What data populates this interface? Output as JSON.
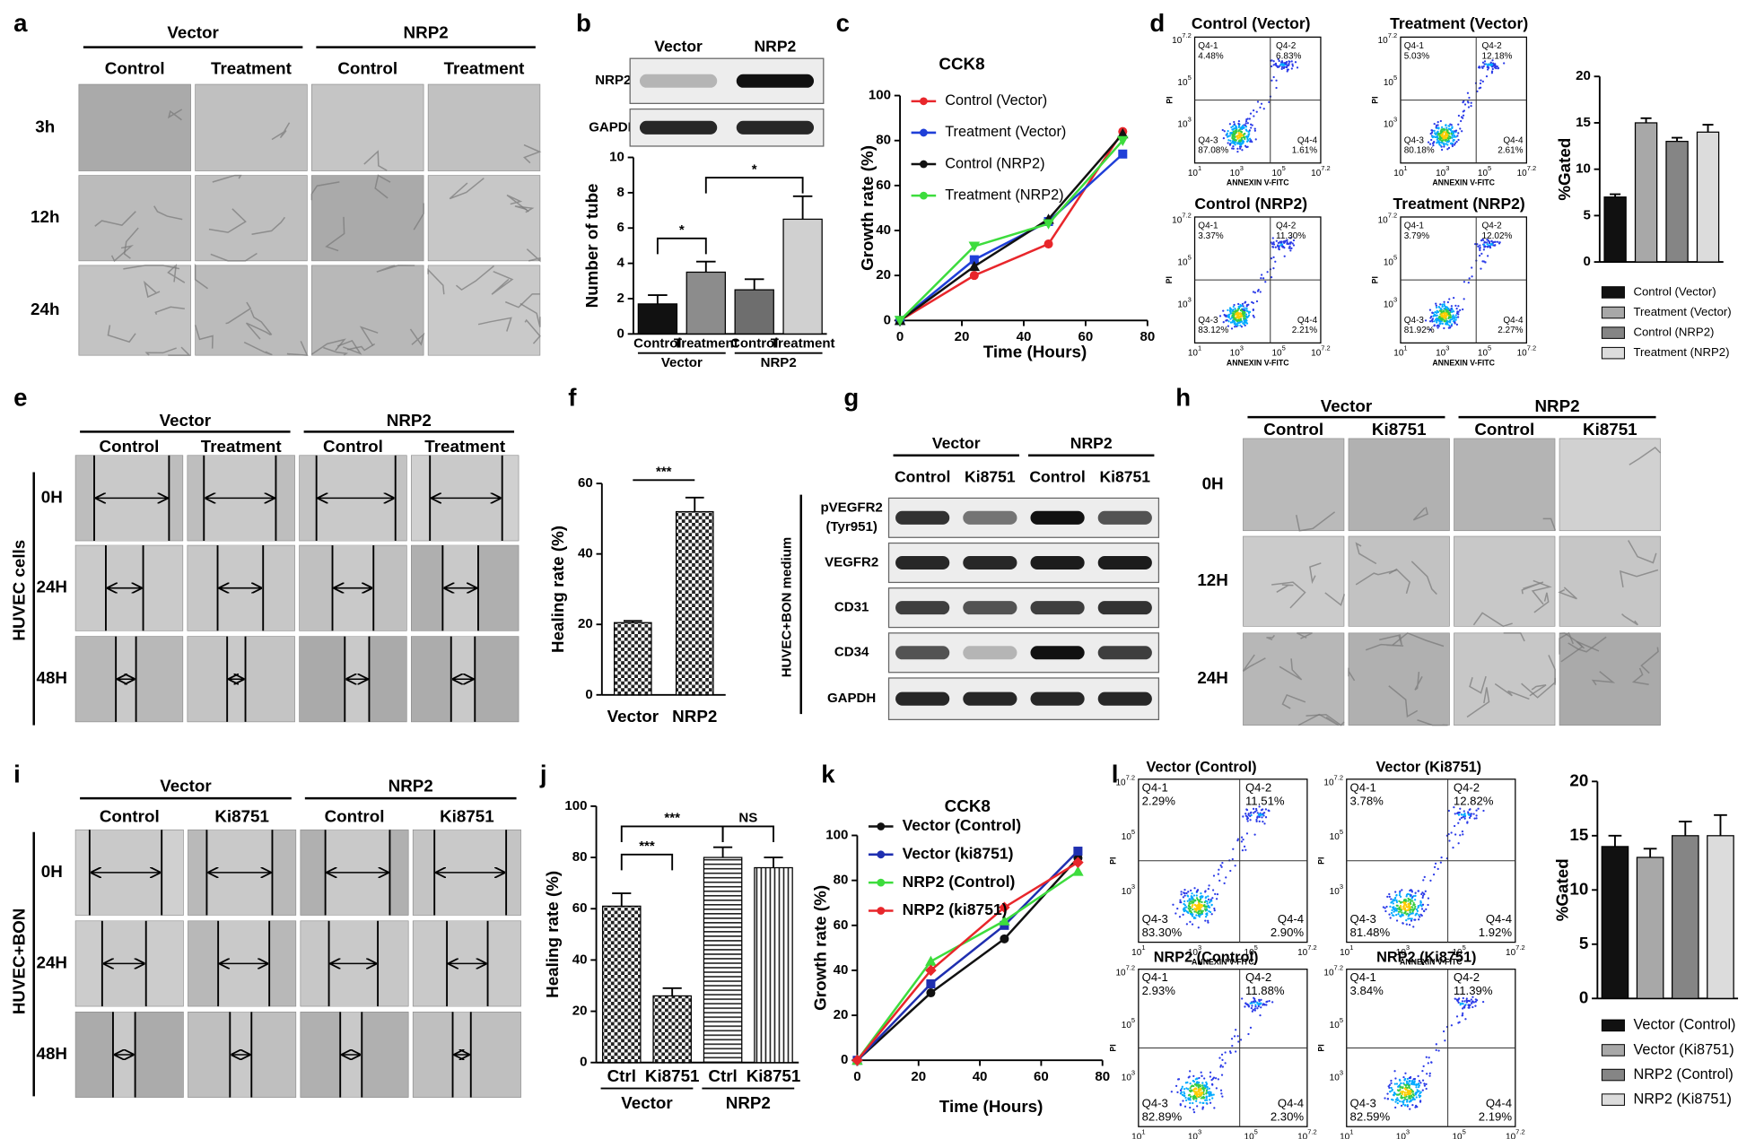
{
  "image_panels": [
    {
      "panel": "a",
      "group_labels": [
        "Vector",
        "NRP2"
      ],
      "columns": [
        "Control",
        "Treatment",
        "Control",
        "Treatment"
      ],
      "rows": [
        "3h",
        "12h",
        "24h"
      ]
    },
    {
      "panel": "e",
      "group_labels": [
        "Vector",
        "NRP2"
      ],
      "columns": [
        "Control",
        "Treatment",
        "Control",
        "Treatment"
      ],
      "rows": [
        "0H",
        "24H",
        "48H"
      ],
      "side_label": "HUVEC cells"
    },
    {
      "panel": "h",
      "group_labels": [
        "Vector",
        "NRP2"
      ],
      "columns": [
        "Control",
        "Ki8751",
        "Control",
        "Ki8751"
      ],
      "rows": [
        "0H",
        "12H",
        "24H"
      ]
    },
    {
      "panel": "i",
      "group_labels": [
        "Vector",
        "NRP2"
      ],
      "columns": [
        "Control",
        "Ki8751",
        "Control",
        "Ki8751"
      ],
      "rows": [
        "0H",
        "24H",
        "48H"
      ],
      "side_label": "HUVEC+BON"
    }
  ],
  "blots": [
    {
      "columns": [
        "Vector",
        "NRP2"
      ],
      "rows": [
        [
          "NRP2"
        ],
        [
          "GAPDH"
        ]
      ]
    },
    {
      "panel": "g",
      "group_labels": [
        "Vector",
        "NRP2"
      ],
      "columns": [
        "Control",
        "Ki8751",
        "Control",
        "Ki8751"
      ],
      "rows": [
        [
          "pVEGFR2",
          "(Tyr951)"
        ],
        [
          "VEGFR2"
        ],
        [
          "CD31"
        ],
        [
          "CD34"
        ],
        [
          "GAPDH"
        ]
      ],
      "side_label": "HUVEC+BON medium"
    }
  ],
  "flow_panels": [
    {
      "panel": "d",
      "tick_base": "10",
      "tick_exponents": [
        "1",
        "3",
        "5",
        "7.2"
      ],
      "x_label": "ANNEXIN V-FITC",
      "y_label": "PI",
      "plots": [
        {
          "title": "Control (Vector)",
          "quadrants": [
            {
              "name": "Q4-1",
              "value": "4.48%"
            },
            {
              "name": "Q4-2",
              "value": "6.83%"
            },
            {
              "name": "Q4-3",
              "value": "87.08%"
            },
            {
              "name": "Q4-4",
              "value": "1.61%"
            }
          ]
        },
        {
          "title": "Treatment (Vector)",
          "quadrants": [
            {
              "name": "Q4-1",
              "value": "5.03%"
            },
            {
              "name": "Q4-2",
              "value": "12.18%"
            },
            {
              "name": "Q4-3",
              "value": "80.18%"
            },
            {
              "name": "Q4-4",
              "value": "2.61%"
            }
          ]
        },
        {
          "title": "Control (NRP2)",
          "quadrants": [
            {
              "name": "Q4-1",
              "value": "3.37%"
            },
            {
              "name": "Q4-2",
              "value": "11.30%"
            },
            {
              "name": "Q4-3",
              "value": "83.12%"
            },
            {
              "name": "Q4-4",
              "value": "2.21%"
            }
          ]
        },
        {
          "title": "Treatment (NRP2)",
          "quadrants": [
            {
              "name": "Q4-1",
              "value": "3.79%"
            },
            {
              "name": "Q4-2",
              "value": "12.02%"
            },
            {
              "name": "Q4-3",
              "value": "81.92%"
            },
            {
              "name": "Q4-4",
              "value": "2.27%"
            }
          ]
        }
      ]
    },
    {
      "panel": "l",
      "tick_base": "10",
      "tick_exponents": [
        "1",
        "3",
        "5",
        "7.2"
      ],
      "x_label": "ANNEXIN V-FITC",
      "y_label": "PI",
      "plots": [
        {
          "title": "Vector (Control)",
          "quadrants": [
            {
              "name": "Q4-1",
              "value": "2.29%"
            },
            {
              "name": "Q4-2",
              "value": "11.51%"
            },
            {
              "name": "Q4-3",
              "value": "83.30%"
            },
            {
              "name": "Q4-4",
              "value": "2.90%"
            }
          ]
        },
        {
          "title": "Vector (Ki8751)",
          "quadrants": [
            {
              "name": "Q4-1",
              "value": "3.78%"
            },
            {
              "name": "Q4-2",
              "value": "12.82%"
            },
            {
              "name": "Q4-3",
              "value": "81.48%"
            },
            {
              "name": "Q4-4",
              "value": "1.92%"
            }
          ]
        },
        {
          "title": "NRP2 (Control)",
          "quadrants": [
            {
              "name": "Q4-1",
              "value": "2.93%"
            },
            {
              "name": "Q4-2",
              "value": "11.88%"
            },
            {
              "name": "Q4-3",
              "value": "82.89%"
            },
            {
              "name": "Q4-4",
              "value": "2.30%"
            }
          ]
        },
        {
          "title": "NRP2 (Ki8751)",
          "quadrants": [
            {
              "name": "Q4-1",
              "value": "3.84%"
            },
            {
              "name": "Q4-2",
              "value": "11.39%"
            },
            {
              "name": "Q4-3",
              "value": "82.59%"
            },
            {
              "name": "Q4-4",
              "value": "2.19%"
            }
          ]
        }
      ]
    }
  ],
  "chart_data": [
    {
      "type": "bar",
      "panel": "b",
      "categories": [
        "Control",
        "Treatment",
        "Control",
        "Treatment"
      ],
      "group_labels": [
        "Vector",
        "NRP2"
      ],
      "values": [
        1.7,
        3.5,
        2.5,
        6.5
      ],
      "errors": [
        0.5,
        0.6,
        0.6,
        1.3
      ],
      "colors": [
        "#111111",
        "#8c8c8c",
        "#6e6e6e",
        "#d0d0d0"
      ],
      "ylim": [
        0,
        10
      ],
      "yticks": [
        0,
        2,
        4,
        6,
        8,
        10
      ],
      "y_label": "Number of tube",
      "annotations": [
        "*",
        "*"
      ]
    },
    {
      "type": "line",
      "panel": "c",
      "title": "CCK8",
      "x": [
        0,
        24,
        48,
        72
      ],
      "series": [
        {
          "name": "Control (Vector)",
          "color": "#e8262b",
          "marker": "circle",
          "values": [
            0,
            20,
            34,
            84
          ]
        },
        {
          "name": "Treatment (Vector)",
          "color": "#1f3fd8",
          "marker": "square",
          "values": [
            0,
            27,
            44,
            74
          ]
        },
        {
          "name": "Control (NRP2)",
          "color": "#111111",
          "marker": "triangle",
          "values": [
            0,
            24,
            45,
            83
          ]
        },
        {
          "name": "Treatment (NRP2)",
          "color": "#3ddc3d",
          "marker": "triangle-down",
          "values": [
            0,
            33,
            43,
            80
          ]
        }
      ],
      "xlim": [
        0,
        80
      ],
      "xticks": [
        0,
        20,
        40,
        60,
        80
      ],
      "ylim": [
        0,
        100
      ],
      "yticks": [
        0,
        20,
        40,
        60,
        80,
        100
      ],
      "x_label": "Time (Hours)",
      "y_label": "Growth rate (%)"
    },
    {
      "type": "bar",
      "categories": [
        "Control (Vector)",
        "Treatment (Vector)",
        "Control (NRP2)",
        "Treatment (NRP2)"
      ],
      "values": [
        7,
        15,
        13,
        14
      ],
      "errors": [
        0.3,
        0.5,
        0.4,
        0.8
      ],
      "colors": [
        "#111111",
        "#a8a8a8",
        "#858585",
        "#dcdcdc"
      ],
      "ylim": [
        0,
        20
      ],
      "yticks": [
        0,
        5,
        10,
        15,
        20
      ],
      "y_label": "%Gated",
      "legend": true
    },
    {
      "type": "bar",
      "panel": "f",
      "categories": [
        "Vector",
        "NRP2"
      ],
      "values": [
        20.5,
        52
      ],
      "errors": [
        0.5,
        4
      ],
      "fill_patterns": [
        "checker",
        "checker"
      ],
      "ylim": [
        0,
        60
      ],
      "yticks": [
        0,
        20,
        40,
        60
      ],
      "y_label": "Healing rate (%)",
      "annotations": [
        "***"
      ]
    },
    {
      "type": "bar",
      "panel": "j",
      "categories": [
        "Ctrl",
        "Ki8751",
        "Ctrl",
        "Ki8751"
      ],
      "group_labels": [
        "Vector",
        "NRP2"
      ],
      "values": [
        61,
        26,
        80,
        76
      ],
      "errors": [
        5,
        3,
        4,
        4
      ],
      "fill_patterns": [
        "checker",
        "checker",
        "hlines",
        "vlines"
      ],
      "ylim": [
        0,
        100
      ],
      "yticks": [
        0,
        20,
        40,
        60,
        80,
        100
      ],
      "y_label": "Healing rate (%)",
      "annotations": [
        "***",
        "***",
        "NS"
      ]
    },
    {
      "type": "line",
      "panel": "k",
      "title": "CCK8",
      "x": [
        0,
        24,
        48,
        72
      ],
      "series": [
        {
          "name": "Vector (Control)",
          "color": "#111111",
          "marker": "circle",
          "values": [
            0,
            30,
            54,
            90
          ]
        },
        {
          "name": "Vector (ki8751)",
          "color": "#1f2fb0",
          "marker": "square",
          "values": [
            0,
            34,
            60,
            93
          ]
        },
        {
          "name": "NRP2 (Control)",
          "color": "#3ddc3d",
          "marker": "triangle",
          "values": [
            0,
            44,
            62,
            84
          ]
        },
        {
          "name": "NRP2 (ki8751)",
          "color": "#e8262b",
          "marker": "diamond",
          "values": [
            0,
            40,
            68,
            88
          ]
        }
      ],
      "xlim": [
        0,
        80
      ],
      "xticks": [
        0,
        20,
        40,
        60,
        80
      ],
      "ylim": [
        0,
        100
      ],
      "yticks": [
        0,
        20,
        40,
        60,
        80,
        100
      ],
      "x_label": "Time (Hours)",
      "y_label": "Growth rate (%)"
    },
    {
      "type": "bar",
      "categories": [
        "Vector (Control)",
        "Vector (Ki8751)",
        "NRP2 (Control)",
        "NRP2 (Ki8751)"
      ],
      "values": [
        14,
        13,
        15,
        15
      ],
      "errors": [
        1,
        0.8,
        1.3,
        1.9
      ],
      "colors": [
        "#111111",
        "#a8a8a8",
        "#858585",
        "#dcdcdc"
      ],
      "ylim": [
        0,
        20
      ],
      "yticks": [
        0,
        5,
        10,
        15,
        20
      ],
      "y_label": "%Gated",
      "legend": true
    }
  ]
}
